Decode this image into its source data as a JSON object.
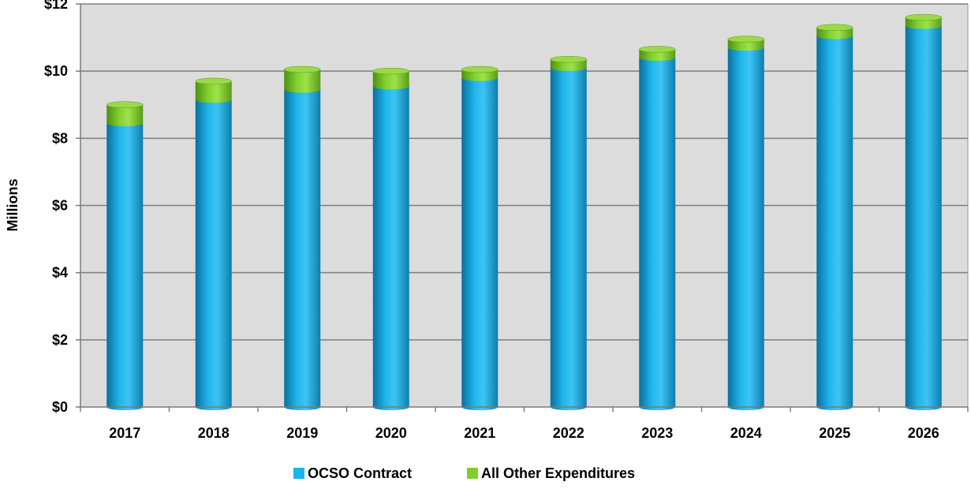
{
  "chart_data": {
    "type": "bar",
    "stacked": true,
    "categories": [
      "2017",
      "2018",
      "2019",
      "2020",
      "2021",
      "2022",
      "2023",
      "2024",
      "2025",
      "2026"
    ],
    "series": [
      {
        "name": "OCSO Contract",
        "color": "#1eb4ea",
        "values": [
          8.45,
          9.15,
          9.45,
          9.55,
          9.8,
          10.1,
          10.4,
          10.7,
          11.05,
          11.35
        ]
      },
      {
        "name": "All Other Expenditures",
        "color": "#7fcf2c",
        "values": [
          0.55,
          0.55,
          0.6,
          0.45,
          0.25,
          0.25,
          0.25,
          0.25,
          0.25,
          0.25
        ]
      }
    ],
    "ylabel": "Millions",
    "xlabel": "",
    "ylim": [
      0,
      12
    ],
    "yticks": [
      "$0",
      "$2",
      "$4",
      "$6",
      "$8",
      "$10",
      "$12"
    ],
    "ytick_values": [
      0,
      2,
      4,
      6,
      8,
      10,
      12
    ],
    "grid": true,
    "legend_position": "bottom-center"
  }
}
